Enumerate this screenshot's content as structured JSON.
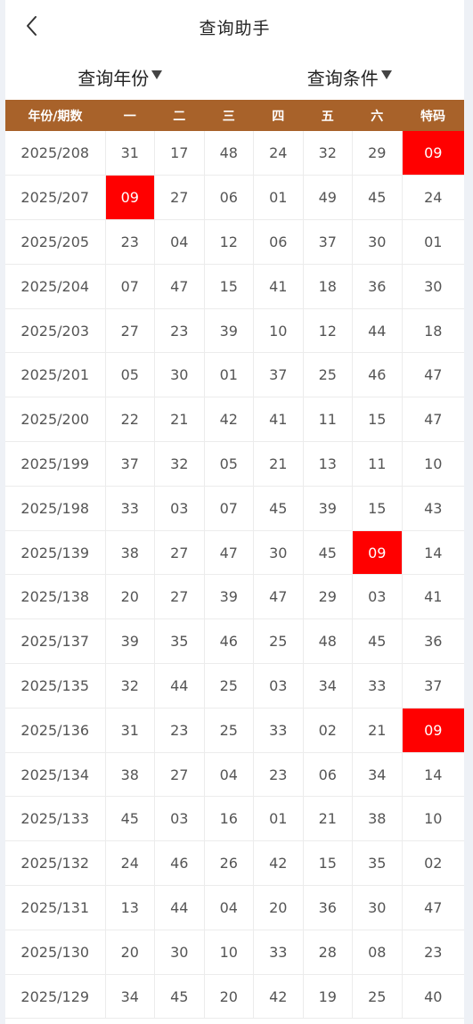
{
  "header": {
    "title": "查询助手",
    "back_icon": "chevron-left-icon"
  },
  "filters": [
    {
      "label": "查询年份",
      "icon": "caret-down-icon"
    },
    {
      "label": "查询条件",
      "icon": "caret-down-icon"
    }
  ],
  "table": {
    "columns": [
      "年份/期数",
      "一",
      "二",
      "三",
      "四",
      "五",
      "六",
      "特码"
    ],
    "highlight_value": "09",
    "highlight_color": "#ff0000",
    "header_color": "#a8622a",
    "rows": [
      [
        "2025/208",
        "31",
        "17",
        "48",
        "24",
        "32",
        "29",
        "09"
      ],
      [
        "2025/207",
        "09",
        "27",
        "06",
        "01",
        "49",
        "45",
        "24"
      ],
      [
        "2025/205",
        "23",
        "04",
        "12",
        "06",
        "37",
        "30",
        "01"
      ],
      [
        "2025/204",
        "07",
        "47",
        "15",
        "41",
        "18",
        "36",
        "30"
      ],
      [
        "2025/203",
        "27",
        "23",
        "39",
        "10",
        "12",
        "44",
        "18"
      ],
      [
        "2025/201",
        "05",
        "30",
        "01",
        "37",
        "25",
        "46",
        "47"
      ],
      [
        "2025/200",
        "22",
        "21",
        "42",
        "41",
        "11",
        "15",
        "47"
      ],
      [
        "2025/199",
        "37",
        "32",
        "05",
        "21",
        "13",
        "11",
        "10"
      ],
      [
        "2025/198",
        "33",
        "03",
        "07",
        "45",
        "39",
        "15",
        "43"
      ],
      [
        "2025/139",
        "38",
        "27",
        "47",
        "30",
        "45",
        "09",
        "14"
      ],
      [
        "2025/138",
        "20",
        "27",
        "39",
        "47",
        "29",
        "03",
        "41"
      ],
      [
        "2025/137",
        "39",
        "35",
        "46",
        "25",
        "48",
        "45",
        "36"
      ],
      [
        "2025/135",
        "32",
        "44",
        "25",
        "03",
        "34",
        "33",
        "37"
      ],
      [
        "2025/136",
        "31",
        "23",
        "25",
        "33",
        "02",
        "21",
        "09"
      ],
      [
        "2025/134",
        "38",
        "27",
        "04",
        "23",
        "06",
        "34",
        "14"
      ],
      [
        "2025/133",
        "45",
        "03",
        "16",
        "01",
        "21",
        "38",
        "10"
      ],
      [
        "2025/132",
        "24",
        "46",
        "26",
        "42",
        "15",
        "35",
        "02"
      ],
      [
        "2025/131",
        "13",
        "44",
        "04",
        "20",
        "36",
        "30",
        "47"
      ],
      [
        "2025/130",
        "20",
        "30",
        "10",
        "33",
        "28",
        "08",
        "23"
      ],
      [
        "2025/129",
        "34",
        "45",
        "20",
        "42",
        "19",
        "25",
        "40"
      ]
    ]
  }
}
